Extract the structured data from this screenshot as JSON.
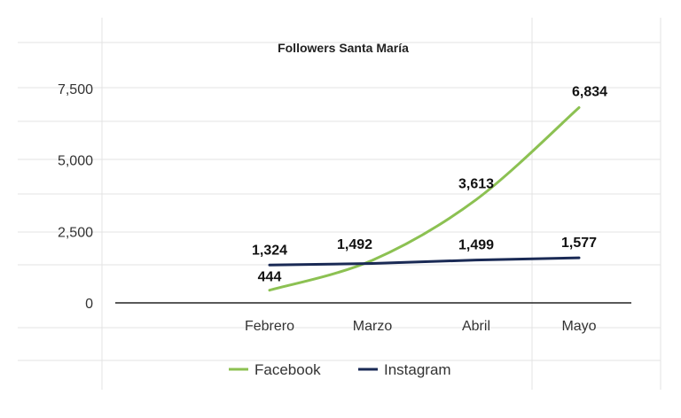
{
  "chart_data": {
    "type": "line",
    "title": "Followers Santa María",
    "categories": [
      "Febrero",
      "Marzo",
      "Abril",
      "Mayo"
    ],
    "ylim": [
      0,
      7500
    ],
    "yticks": [
      "0",
      "2,500",
      "5,000",
      "7,500"
    ],
    "grid": true,
    "legend_position": "bottom",
    "series": [
      {
        "name": "Facebook",
        "color": "#8cc152",
        "values": [
          444,
          1492,
          3613,
          6834
        ],
        "labels": [
          "444",
          "1,492",
          "3,613",
          "6,834"
        ]
      },
      {
        "name": "Instagram",
        "color": "#1a2a55",
        "values": [
          1324,
          1380,
          1499,
          1577
        ],
        "labels": [
          "1,324",
          "",
          "1,499",
          "1,577"
        ]
      }
    ]
  }
}
